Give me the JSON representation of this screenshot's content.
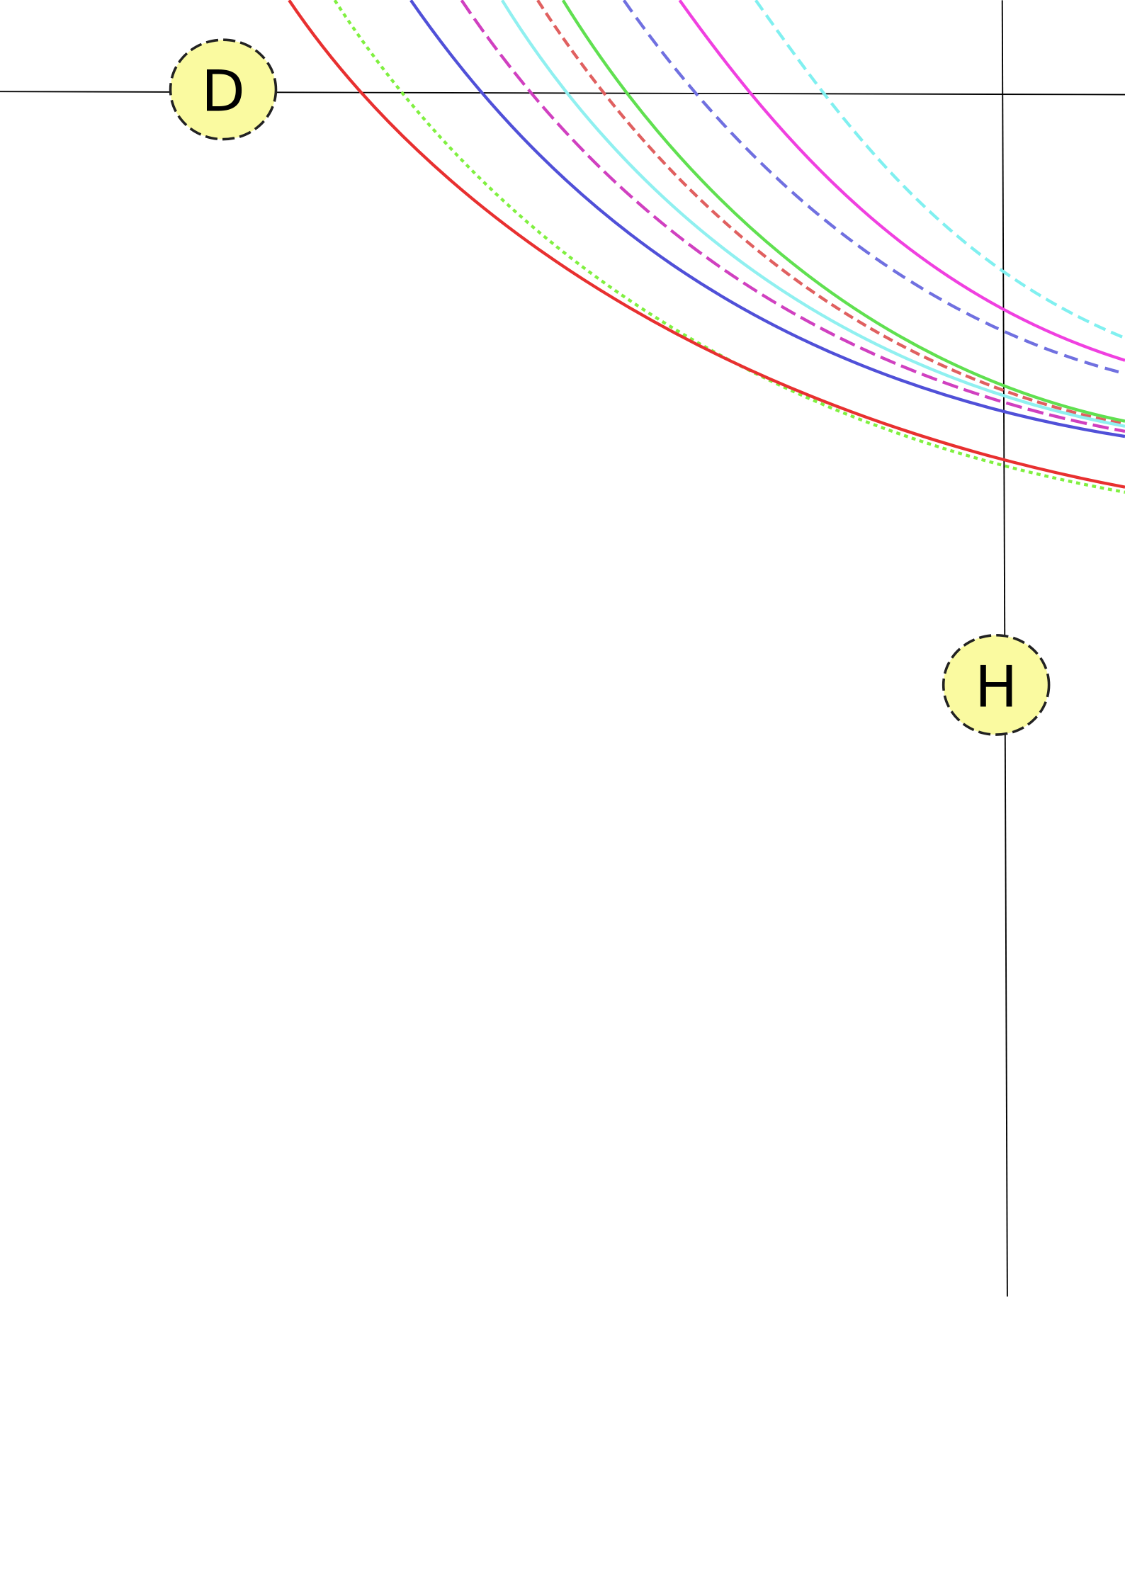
{
  "nodes": [
    {
      "label": "D"
    },
    {
      "label": "H"
    }
  ]
}
